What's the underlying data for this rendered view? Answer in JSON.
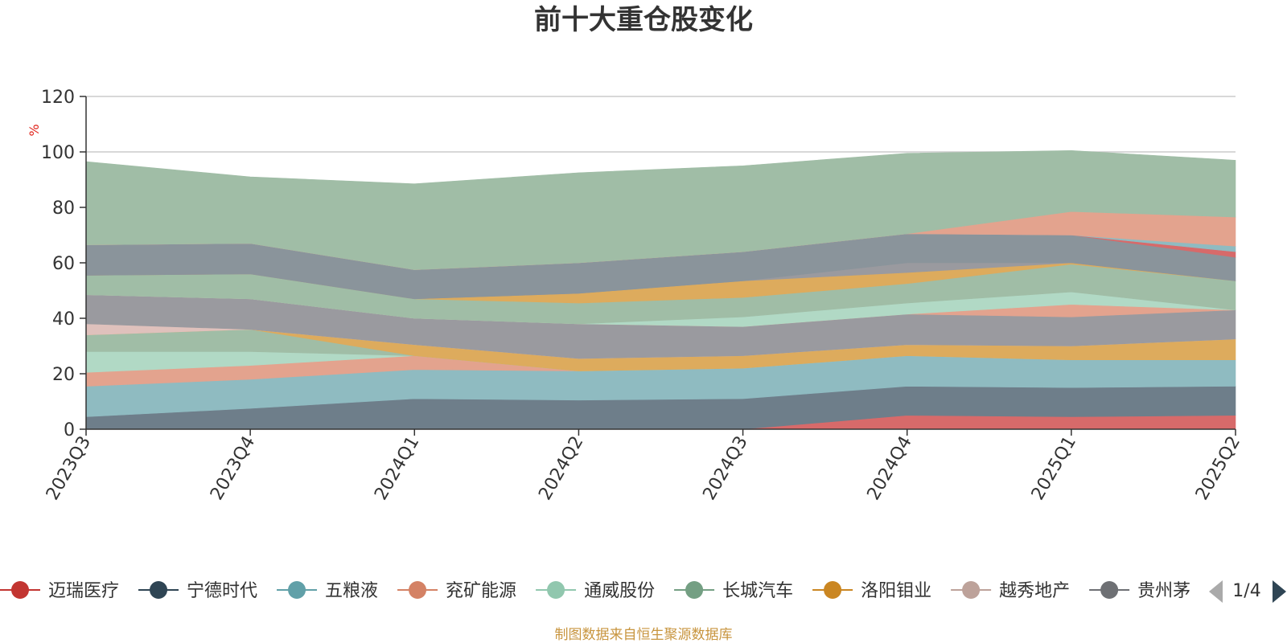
{
  "chart_data": {
    "type": "area",
    "stacked": true,
    "title": "前十大重仓股变化",
    "ylabel": "%",
    "ylim": [
      0,
      120
    ],
    "yticks": [
      0,
      20,
      40,
      60,
      80,
      100,
      120
    ],
    "grid": true,
    "categories": [
      "2023Q3",
      "2023Q4",
      "2024Q1",
      "2024Q2",
      "2024Q3",
      "2024Q4",
      "2025Q1",
      "2025Q2"
    ],
    "series": [
      {
        "name": "迈瑞医疗",
        "color": "#d76a6a",
        "values": [
          0,
          0,
          0,
          0,
          0,
          5,
          4.5,
          5
        ]
      },
      {
        "name": "宁德时代",
        "color": "#6e7e8a",
        "values": [
          4.5,
          7.5,
          11,
          10.5,
          11,
          10.5,
          10.5,
          10.5
        ]
      },
      {
        "name": "五粮液",
        "color": "#8fbbc1",
        "values": [
          11,
          10.5,
          10.5,
          10.5,
          11,
          11,
          10,
          9.5
        ]
      },
      {
        "name": "兖矿能源",
        "color": "#e3a38e",
        "values": [
          5,
          5,
          5,
          0,
          0,
          0,
          0,
          0
        ]
      },
      {
        "name": "通威股份",
        "color": "#b1d9c5",
        "values": [
          7.5,
          5,
          0,
          0,
          0,
          0,
          0,
          0
        ]
      },
      {
        "name": "长城汽车",
        "color": "#a0bda6",
        "values": [
          6,
          8,
          0,
          0,
          0,
          0,
          0,
          0
        ]
      },
      {
        "name": "洛阳钼业",
        "color": "#ddab5d",
        "values": [
          0,
          0,
          4,
          4.5,
          4.5,
          4,
          5,
          7.5
        ]
      },
      {
        "name": "越秀地产",
        "color": "#dfc1bc",
        "values": [
          4,
          0,
          0,
          0,
          0,
          0,
          0,
          0
        ]
      },
      {
        "name": "贵州茅台",
        "color": "#9a9a9f",
        "values": [
          10.5,
          11,
          9.5,
          12.5,
          10.5,
          11,
          10.5,
          10.5
        ]
      },
      {
        "name": "",
        "color": "#e3a38e",
        "values": [
          0,
          0,
          0,
          0,
          0,
          0,
          4.5,
          0
        ]
      },
      {
        "name": "",
        "color": "#b1d9c5",
        "values": [
          0,
          0,
          0,
          0,
          3.5,
          4,
          4.5,
          0
        ]
      },
      {
        "name": "",
        "color": "#a0bda6",
        "values": [
          7,
          9,
          7,
          7.5,
          7,
          7,
          10,
          10.5
        ]
      },
      {
        "name": "",
        "color": "#ddab5d",
        "values": [
          0,
          0,
          0,
          3.5,
          6,
          4,
          0.5,
          0
        ]
      },
      {
        "name": "",
        "color": "#9a9a9f",
        "values": [
          0,
          0,
          0,
          0,
          0,
          3.5,
          0,
          0
        ]
      },
      {
        "name": "",
        "color": "#8a949b",
        "values": [
          11,
          11,
          10.5,
          11,
          10.5,
          10.5,
          10,
          8.5
        ]
      },
      {
        "name": "",
        "color": "#d76a6a",
        "values": [
          0,
          0,
          0,
          0,
          0,
          0,
          0,
          2
        ]
      },
      {
        "name": "",
        "color": "#8fbbc1",
        "values": [
          0,
          0,
          0,
          0,
          0,
          0,
          0,
          2
        ]
      },
      {
        "name": "",
        "color": "#e3a38e",
        "values": [
          0,
          0,
          0,
          0,
          0,
          0,
          8.5,
          10.5
        ]
      },
      {
        "name": "",
        "color": "#a0bda6",
        "values": [
          30,
          24,
          31,
          32.5,
          31,
          29,
          22,
          20.5
        ]
      }
    ],
    "legend": {
      "position": "bottom",
      "page": "1/4",
      "items": [
        {
          "name": "迈瑞医疗",
          "color": "#c23531"
        },
        {
          "name": "宁德时代",
          "color": "#2f4554"
        },
        {
          "name": "五粮液",
          "color": "#61a0a8"
        },
        {
          "name": "兖矿能源",
          "color": "#d48265"
        },
        {
          "name": "通威股份",
          "color": "#91c7ae"
        },
        {
          "name": "长城汽车",
          "color": "#749f83"
        },
        {
          "name": "洛阳钼业",
          "color": "#ca8622"
        },
        {
          "name": "越秀地产",
          "color": "#bda29a"
        },
        {
          "name": "贵州茅台",
          "color": "#6e7074"
        }
      ]
    }
  },
  "footer": {
    "source": "制图数据来自恒生聚源数据库"
  }
}
